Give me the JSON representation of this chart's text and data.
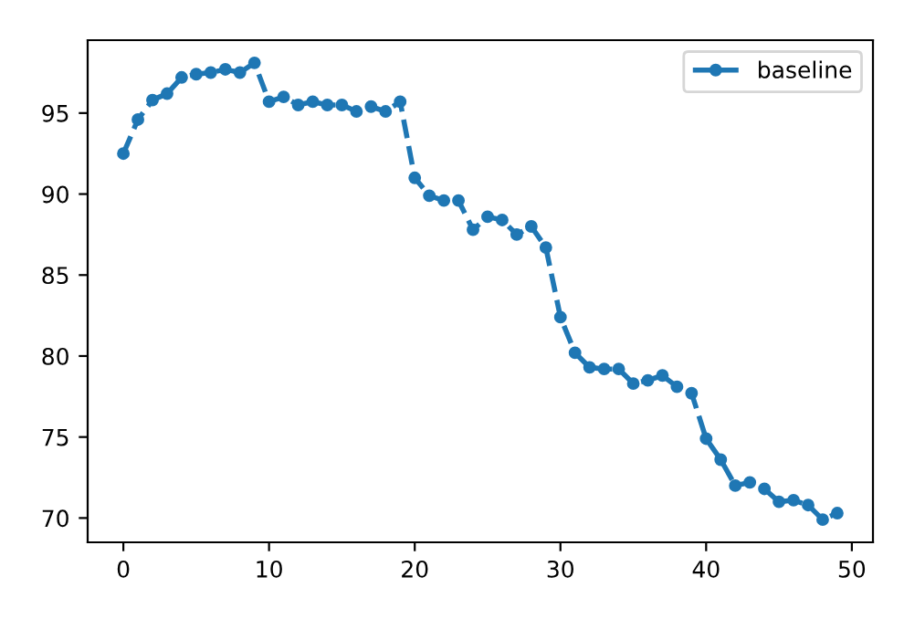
{
  "chart_data": {
    "type": "line",
    "x": [
      0,
      1,
      2,
      3,
      4,
      5,
      6,
      7,
      8,
      9,
      10,
      11,
      12,
      13,
      14,
      15,
      16,
      17,
      18,
      19,
      20,
      21,
      22,
      23,
      24,
      25,
      26,
      27,
      28,
      29,
      30,
      31,
      32,
      33,
      34,
      35,
      36,
      37,
      38,
      39,
      40,
      41,
      42,
      43,
      44,
      45,
      46,
      47,
      48,
      49
    ],
    "series": [
      {
        "name": "baseline",
        "color": "#1f77b4",
        "values": [
          92.5,
          94.6,
          95.8,
          96.2,
          97.2,
          97.4,
          97.5,
          97.7,
          97.5,
          98.1,
          95.7,
          96.0,
          95.5,
          95.7,
          95.5,
          95.5,
          95.1,
          95.4,
          95.1,
          95.7,
          91.0,
          89.9,
          89.6,
          89.6,
          87.8,
          88.6,
          88.4,
          87.5,
          88.0,
          86.7,
          82.4,
          80.2,
          79.3,
          79.2,
          79.2,
          78.3,
          78.5,
          78.8,
          78.1,
          77.7,
          74.9,
          73.6,
          72.0,
          72.2,
          71.8,
          71.0,
          71.1,
          70.8,
          69.9,
          70.3
        ]
      }
    ],
    "xlim": [
      -2.45,
      51.45
    ],
    "ylim": [
      68.5,
      99.5
    ],
    "xticks": [
      0,
      10,
      20,
      30,
      40,
      50
    ],
    "yticks": [
      70,
      75,
      80,
      85,
      90,
      95
    ],
    "marker": "circle",
    "line_style": "dashed",
    "legend": "top right",
    "grid": false
  }
}
